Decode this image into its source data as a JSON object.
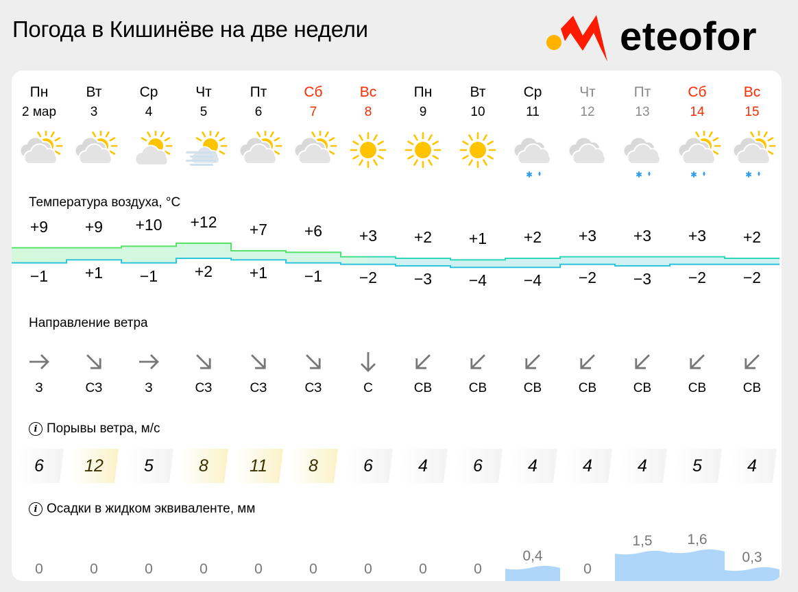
{
  "header": {
    "title": "Погода в Кишинёве на две недели",
    "logo_text": "eteofor",
    "logo_brand": "Meteofor",
    "colors": {
      "logo_red": "#ff1a00",
      "logo_dot": "#ffb300"
    }
  },
  "days": [
    {
      "dow": "Пн",
      "date": "2 мар",
      "kind": "weekday",
      "icon": "partly-cloudy-icon"
    },
    {
      "dow": "Вт",
      "date": "3",
      "kind": "weekday",
      "icon": "partly-cloudy-icon"
    },
    {
      "dow": "Ср",
      "date": "4",
      "kind": "weekday",
      "icon": "sun-behind-cloud-icon"
    },
    {
      "dow": "Чт",
      "date": "5",
      "kind": "weekday",
      "icon": "sun-fog-icon"
    },
    {
      "dow": "Пт",
      "date": "6",
      "kind": "weekday",
      "icon": "partly-cloudy-icon"
    },
    {
      "dow": "Сб",
      "date": "7",
      "kind": "weekend",
      "icon": "partly-cloudy-icon"
    },
    {
      "dow": "Вс",
      "date": "8",
      "kind": "weekend",
      "icon": "sun-icon"
    },
    {
      "dow": "Пн",
      "date": "9",
      "kind": "weekday",
      "icon": "sun-icon"
    },
    {
      "dow": "Вт",
      "date": "10",
      "kind": "weekday",
      "icon": "sun-icon"
    },
    {
      "dow": "Ср",
      "date": "11",
      "kind": "weekday",
      "icon": "overcast-sleet-icon"
    },
    {
      "dow": "Чт",
      "date": "12",
      "kind": "past",
      "icon": "overcast-icon"
    },
    {
      "dow": "Пт",
      "date": "13",
      "kind": "past",
      "icon": "overcast-sleet-icon"
    },
    {
      "dow": "Сб",
      "date": "14",
      "kind": "weekend",
      "icon": "partly-cloudy-sleet-icon"
    },
    {
      "dow": "Вс",
      "date": "15",
      "kind": "weekend",
      "icon": "partly-cloudy-sleet-icon"
    }
  ],
  "temperature": {
    "label": "Температура воздуха, °C",
    "max": [
      9,
      9,
      10,
      12,
      7,
      6,
      3,
      2,
      1,
      2,
      3,
      3,
      3,
      2
    ],
    "min": [
      -1,
      1,
      -1,
      2,
      1,
      -1,
      -2,
      -3,
      -4,
      -4,
      -2,
      -3,
      -2,
      -2
    ],
    "max_labels": [
      "+9",
      "+9",
      "+10",
      "+12",
      "+7",
      "+6",
      "+3",
      "+2",
      "+1",
      "+2",
      "+3",
      "+3",
      "+3",
      "+2"
    ],
    "min_labels": [
      "−1",
      "+1",
      "−1",
      "+2",
      "+1",
      "−1",
      "−2",
      "−3",
      "−4",
      "−4",
      "−2",
      "−3",
      "−2",
      "−2"
    ]
  },
  "wind": {
    "label": "Направление ветра",
    "directions": [
      "З",
      "СЗ",
      "З",
      "СЗ",
      "СЗ",
      "СЗ",
      "С",
      "СВ",
      "СВ",
      "СВ",
      "СВ",
      "СВ",
      "СВ",
      "СВ"
    ],
    "arrow_angles": [
      0,
      45,
      0,
      45,
      45,
      45,
      90,
      135,
      135,
      135,
      135,
      135,
      135,
      135
    ]
  },
  "gusts": {
    "label": "Порывы ветра, м/с",
    "values": [
      "6",
      "12",
      "5",
      "8",
      "11",
      "8",
      "6",
      "4",
      "6",
      "4",
      "4",
      "4",
      "5",
      "4"
    ],
    "levels": [
      "calm",
      "mod",
      "calm",
      "mod",
      "mod",
      "mod",
      "calm",
      "calm",
      "calm",
      "calm",
      "calm",
      "calm",
      "calm",
      "calm"
    ]
  },
  "precipitation": {
    "label": "Осадки в жидком эквиваленте, мм",
    "values": [
      0,
      0,
      0,
      0,
      0,
      0,
      0,
      0,
      0,
      0.4,
      0,
      1.5,
      1.6,
      0.3
    ],
    "labels": [
      "0",
      "0",
      "0",
      "0",
      "0",
      "0",
      "0",
      "0",
      "0",
      "0,4",
      "0",
      "1,5",
      "1,6",
      "0,3"
    ]
  },
  "chart_data": {
    "type": "line",
    "title": "Погода в Кишинёве на две недели",
    "categories": [
      "2 мар",
      "3",
      "4",
      "5",
      "6",
      "7",
      "8",
      "9",
      "10",
      "11",
      "12",
      "13",
      "14",
      "15"
    ],
    "series": [
      {
        "name": "Max temperature °C",
        "values": [
          9,
          9,
          10,
          12,
          7,
          6,
          3,
          2,
          1,
          2,
          3,
          3,
          3,
          2
        ]
      },
      {
        "name": "Min temperature °C",
        "values": [
          -1,
          1,
          -1,
          2,
          1,
          -1,
          -2,
          -3,
          -4,
          -4,
          -2,
          -3,
          -2,
          -2
        ]
      },
      {
        "name": "Wind gusts m/s",
        "values": [
          6,
          12,
          5,
          8,
          11,
          8,
          6,
          4,
          6,
          4,
          4,
          4,
          5,
          4
        ]
      },
      {
        "name": "Precipitation mm",
        "values": [
          0,
          0,
          0,
          0,
          0,
          0,
          0,
          0,
          0,
          0.4,
          0,
          1.5,
          1.6,
          0.3
        ]
      }
    ],
    "xlabel": "",
    "ylabel": "°C"
  }
}
